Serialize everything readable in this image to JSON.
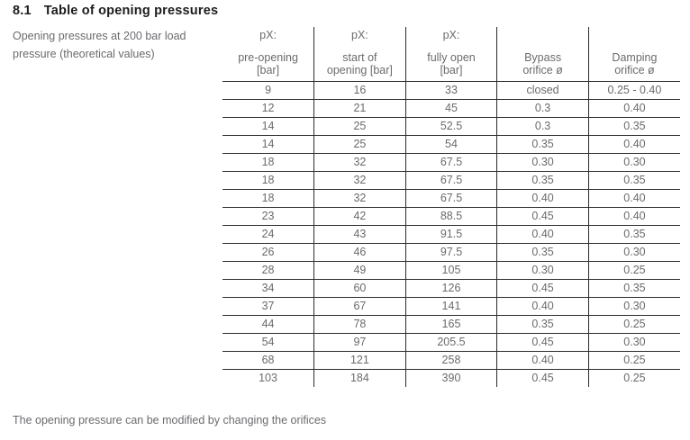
{
  "heading": {
    "number": "8.1",
    "title": "Table of opening pressures"
  },
  "caption": {
    "line1": "Opening pressures at 200 bar load",
    "line2": "pressure (theoretical values)"
  },
  "footnote": "The opening pressure can be modified by changing the orifices",
  "table": {
    "columns": [
      {
        "line1": "pX:",
        "line2": "pre-opening",
        "line3": "[bar]"
      },
      {
        "line1": "pX:",
        "line2": "start of",
        "line3": "opening [bar]"
      },
      {
        "line1": "pX:",
        "line2": "fully open",
        "line3": "[bar]"
      },
      {
        "line1": "",
        "line2": "Bypass",
        "line3": "orifice ø"
      },
      {
        "line1": "",
        "line2": "Damping",
        "line3": "orifice ø"
      }
    ],
    "rows": [
      [
        "9",
        "16",
        "33",
        "closed",
        "0.25 - 0.40"
      ],
      [
        "12",
        "21",
        "45",
        "0.3",
        "0.40"
      ],
      [
        "14",
        "25",
        "52.5",
        "0.3",
        "0.35"
      ],
      [
        "14",
        "25",
        "54",
        "0.35",
        "0.40"
      ],
      [
        "18",
        "32",
        "67.5",
        "0.30",
        "0.30"
      ],
      [
        "18",
        "32",
        "67.5",
        "0.35",
        "0.35"
      ],
      [
        "18",
        "32",
        "67.5",
        "0.40",
        "0.40"
      ],
      [
        "23",
        "42",
        "88.5",
        "0.45",
        "0.40"
      ],
      [
        "24",
        "43",
        "91.5",
        "0.40",
        "0.35"
      ],
      [
        "26",
        "46",
        "97.5",
        "0.35",
        "0.30"
      ],
      [
        "28",
        "49",
        "105",
        "0.30",
        "0.25"
      ],
      [
        "34",
        "60",
        "126",
        "0.45",
        "0.35"
      ],
      [
        "37",
        "67",
        "141",
        "0.40",
        "0.30"
      ],
      [
        "44",
        "78",
        "165",
        "0.35",
        "0.25"
      ],
      [
        "54",
        "97",
        "205.5",
        "0.45",
        "0.30"
      ],
      [
        "68",
        "121",
        "258",
        "0.40",
        "0.25"
      ],
      [
        "103",
        "184",
        "390",
        "0.45",
        "0.25"
      ]
    ]
  },
  "colors": {
    "heading_text": "#1c1c1c",
    "body_text": "#6a6b6e",
    "table_line": "#2b2b2b",
    "background": "#ffffff"
  }
}
